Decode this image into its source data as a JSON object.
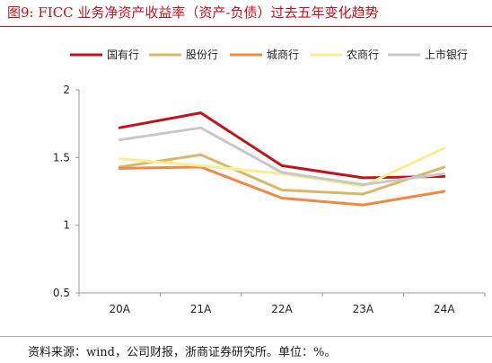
{
  "figure_title": "图9:  FICC 业务净资产收益率（资产-负债）过去五年变化趋势",
  "source_note": "资料来源：wind，公司财报，浙商证券研究所。单位：%。",
  "chart_data": {
    "type": "line",
    "categories": [
      "20A",
      "21A",
      "22A",
      "23A",
      "24A"
    ],
    "y_ticks": [
      "0.5",
      "1",
      "1.5",
      "2"
    ],
    "ylim": [
      0.5,
      2
    ],
    "grid": false,
    "legend_position": "top",
    "series": [
      {
        "name": "国有行",
        "color": "#c0141c",
        "values": [
          1.72,
          1.83,
          1.44,
          1.35,
          1.36
        ]
      },
      {
        "name": "股份行",
        "color": "#d8b866",
        "values": [
          1.43,
          1.52,
          1.26,
          1.23,
          1.43
        ]
      },
      {
        "name": "城商行",
        "color": "#ee8a45",
        "values": [
          1.42,
          1.43,
          1.2,
          1.15,
          1.25
        ]
      },
      {
        "name": "农商行",
        "color": "#f8ee96",
        "values": [
          1.49,
          1.44,
          1.38,
          1.29,
          1.57
        ]
      },
      {
        "name": "上市银行",
        "color": "#c8c8c8",
        "values": [
          1.63,
          1.72,
          1.39,
          1.3,
          1.38
        ]
      }
    ]
  }
}
